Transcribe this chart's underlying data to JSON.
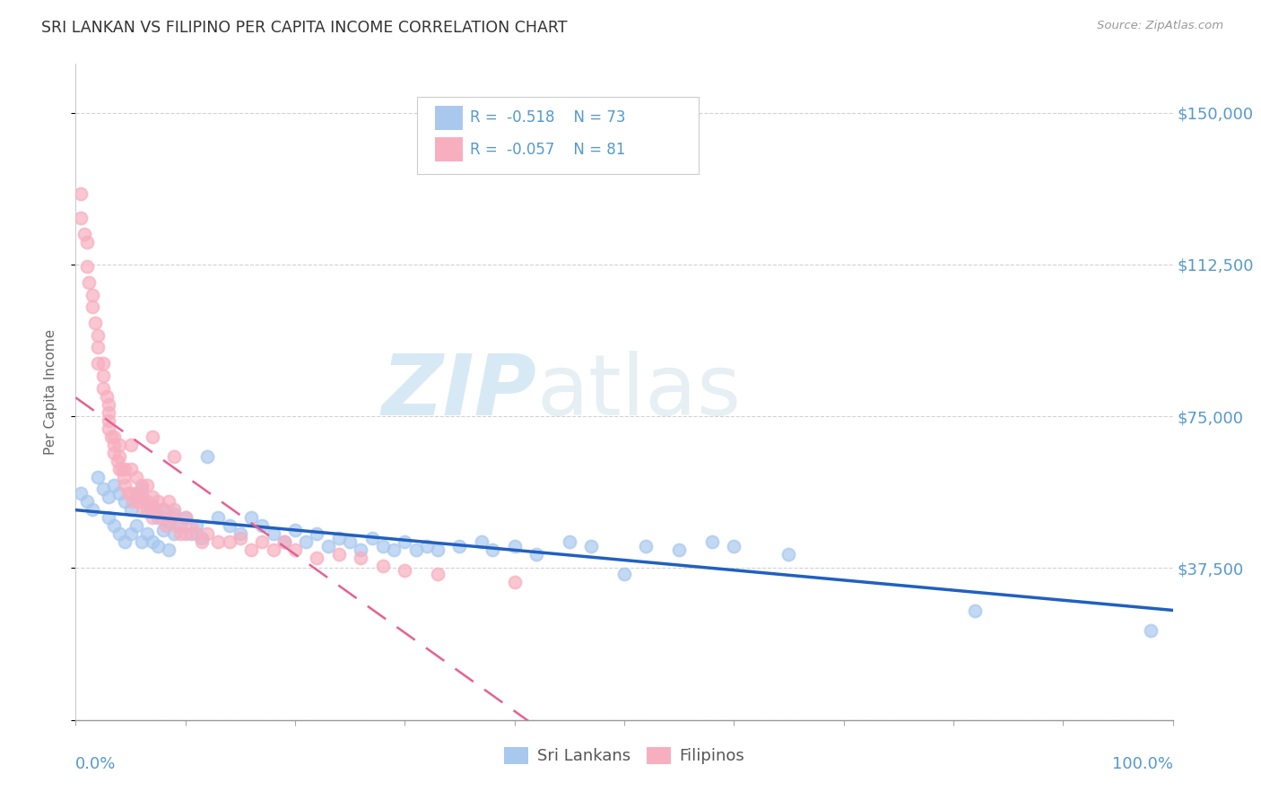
{
  "title": "SRI LANKAN VS FILIPINO PER CAPITA INCOME CORRELATION CHART",
  "source": "Source: ZipAtlas.com",
  "ylabel": "Per Capita Income",
  "y_ticks": [
    0,
    37500,
    75000,
    112500,
    150000
  ],
  "x_range": [
    0,
    1
  ],
  "y_range": [
    0,
    162000
  ],
  "sri_lankan_color": "#a8c8ee",
  "filipino_color": "#f7afc0",
  "sri_lankan_line_color": "#2060c0",
  "filipino_line_color": "#e86090",
  "background_color": "#ffffff",
  "grid_color": "#c8c8c8",
  "axis_label_color": "#5599cc",
  "sri_lankans_x": [
    0.005,
    0.01,
    0.015,
    0.02,
    0.025,
    0.03,
    0.03,
    0.035,
    0.035,
    0.04,
    0.04,
    0.045,
    0.045,
    0.05,
    0.05,
    0.055,
    0.055,
    0.06,
    0.06,
    0.065,
    0.065,
    0.07,
    0.07,
    0.075,
    0.075,
    0.08,
    0.08,
    0.085,
    0.085,
    0.09,
    0.09,
    0.095,
    0.1,
    0.105,
    0.11,
    0.115,
    0.12,
    0.13,
    0.14,
    0.15,
    0.16,
    0.17,
    0.18,
    0.19,
    0.2,
    0.21,
    0.22,
    0.23,
    0.24,
    0.25,
    0.26,
    0.27,
    0.28,
    0.29,
    0.3,
    0.31,
    0.32,
    0.33,
    0.35,
    0.37,
    0.38,
    0.4,
    0.42,
    0.45,
    0.47,
    0.5,
    0.52,
    0.55,
    0.58,
    0.6,
    0.65,
    0.82,
    0.98
  ],
  "sri_lankans_y": [
    56000,
    54000,
    52000,
    60000,
    57000,
    55000,
    50000,
    58000,
    48000,
    56000,
    46000,
    54000,
    44000,
    52000,
    46000,
    55000,
    48000,
    57000,
    44000,
    52000,
    46000,
    53000,
    44000,
    50000,
    43000,
    52000,
    47000,
    49000,
    42000,
    51000,
    46000,
    48000,
    50000,
    46000,
    48000,
    45000,
    65000,
    50000,
    48000,
    46000,
    50000,
    48000,
    46000,
    44000,
    47000,
    44000,
    46000,
    43000,
    45000,
    44000,
    42000,
    45000,
    43000,
    42000,
    44000,
    42000,
    43000,
    42000,
    43000,
    44000,
    42000,
    43000,
    41000,
    44000,
    43000,
    36000,
    43000,
    42000,
    44000,
    43000,
    41000,
    27000,
    22000
  ],
  "filipinos_x": [
    0.005,
    0.005,
    0.008,
    0.01,
    0.01,
    0.012,
    0.015,
    0.015,
    0.018,
    0.02,
    0.02,
    0.02,
    0.025,
    0.025,
    0.025,
    0.028,
    0.03,
    0.03,
    0.03,
    0.03,
    0.032,
    0.035,
    0.035,
    0.035,
    0.038,
    0.04,
    0.04,
    0.04,
    0.042,
    0.044,
    0.045,
    0.045,
    0.048,
    0.05,
    0.05,
    0.05,
    0.052,
    0.055,
    0.055,
    0.058,
    0.06,
    0.06,
    0.062,
    0.065,
    0.065,
    0.068,
    0.07,
    0.07,
    0.072,
    0.075,
    0.078,
    0.08,
    0.082,
    0.085,
    0.088,
    0.09,
    0.092,
    0.095,
    0.1,
    0.1,
    0.105,
    0.11,
    0.115,
    0.12,
    0.13,
    0.14,
    0.15,
    0.16,
    0.17,
    0.18,
    0.19,
    0.2,
    0.22,
    0.24,
    0.26,
    0.28,
    0.3,
    0.33,
    0.4,
    0.07,
    0.09
  ],
  "filipinos_y": [
    130000,
    124000,
    120000,
    118000,
    112000,
    108000,
    105000,
    102000,
    98000,
    95000,
    92000,
    88000,
    88000,
    85000,
    82000,
    80000,
    78000,
    76000,
    74000,
    72000,
    70000,
    70000,
    68000,
    66000,
    64000,
    68000,
    65000,
    62000,
    62000,
    60000,
    62000,
    58000,
    56000,
    68000,
    62000,
    56000,
    54000,
    60000,
    56000,
    54000,
    58000,
    55000,
    52000,
    58000,
    54000,
    52000,
    55000,
    50000,
    52000,
    54000,
    50000,
    52000,
    48000,
    54000,
    50000,
    52000,
    48000,
    46000,
    50000,
    46000,
    48000,
    46000,
    44000,
    46000,
    44000,
    44000,
    45000,
    42000,
    44000,
    42000,
    44000,
    42000,
    40000,
    41000,
    40000,
    38000,
    37000,
    36000,
    34000,
    70000,
    65000
  ],
  "watermark_zip": "ZIP",
  "watermark_atlas": "atlas"
}
